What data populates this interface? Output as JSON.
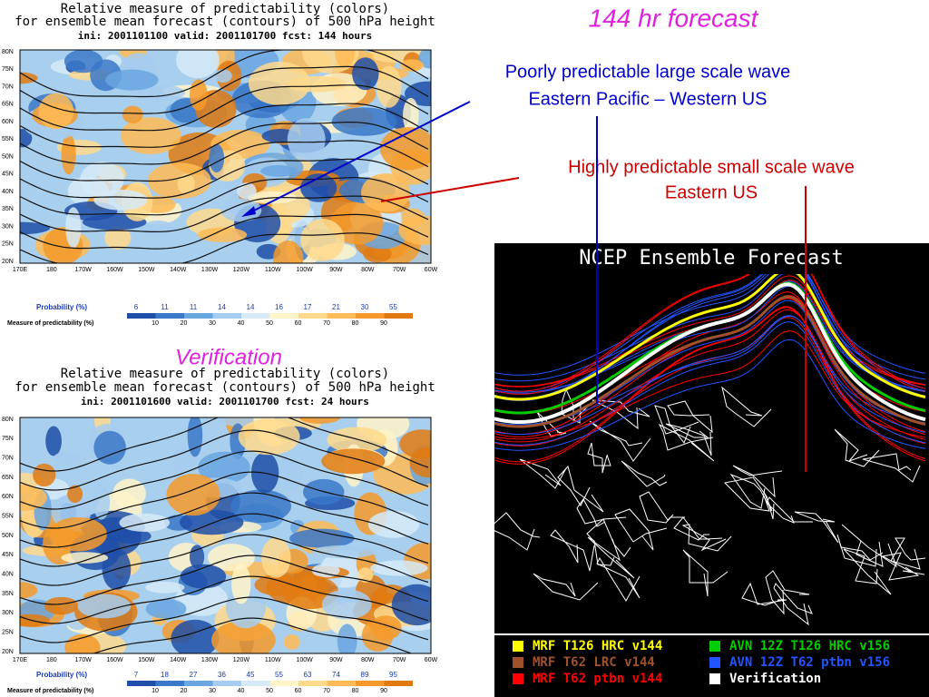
{
  "slide": {
    "title": "144 hr forecast",
    "verification_label": "Verification",
    "annotations": [
      {
        "lines": [
          "Poorly predictable large scale wave",
          "Eastern Pacific – Western US"
        ],
        "color": "#0000cc"
      },
      {
        "lines": [
          "Highly predictable small scale wave",
          "Eastern US"
        ],
        "color": "#cc0000"
      }
    ]
  },
  "panels": [
    {
      "title_lines": [
        "Relative measure of predictability (colors)",
        "for ensemble mean forecast (contours) of 500 hPa height",
        "ini: 2001101100 valid: 2001101700 fcst: 144 hours"
      ],
      "lat_labels": [
        "80N",
        "75N",
        "70N",
        "65N",
        "60N",
        "55N",
        "50N",
        "45N",
        "40N",
        "35N",
        "30N",
        "25N",
        "20N"
      ],
      "lon_labels": [
        "170E",
        "180",
        "170W",
        "160W",
        "150W",
        "140W",
        "130W",
        "120W",
        "110W",
        "100W",
        "90W",
        "80W",
        "70W",
        "60W"
      ],
      "probability_label": "Probability (%)",
      "probability_values": [
        "6",
        "11",
        "11",
        "14",
        "14",
        "16",
        "17",
        "21",
        "30",
        "55"
      ],
      "measure_label": "Measure of predictability (%)",
      "measure_values": [
        "10",
        "20",
        "30",
        "40",
        "50",
        "60",
        "70",
        "80",
        "90"
      ]
    },
    {
      "title_lines": [
        "Relative measure of predictability (colors)",
        "for ensemble mean forecast (contours) of 500 hPa height",
        "ini: 2001101600 valid: 2001101700 fcst: 24 hours"
      ],
      "lat_labels": [
        "80N",
        "75N",
        "70N",
        "65N",
        "60N",
        "55N",
        "50N",
        "45N",
        "40N",
        "35N",
        "30N",
        "25N",
        "20N"
      ],
      "lon_labels": [
        "170E",
        "180",
        "170W",
        "160W",
        "150W",
        "140W",
        "130W",
        "120W",
        "110W",
        "100W",
        "90W",
        "80W",
        "70W",
        "60W"
      ],
      "probability_label": "Probability (%)",
      "probability_values": [
        "7",
        "18",
        "27",
        "36",
        "45",
        "55",
        "63",
        "74",
        "89",
        "95"
      ],
      "measure_label": "Measure of predictability (%)",
      "measure_values": [
        "10",
        "20",
        "30",
        "40",
        "50",
        "60",
        "70",
        "80",
        "90"
      ]
    }
  ],
  "ensemble": {
    "title": "NCEP Ensemble Forecast",
    "legend": [
      {
        "label": "MRF T126 HRC v144",
        "color": "#ffff00"
      },
      {
        "label": "AVN 12Z T126 HRC v156",
        "color": "#00cc00"
      },
      {
        "label": "MRF T62 LRC v144",
        "color": "#a0522d"
      },
      {
        "label": "AVN 12Z T62 ptbn v156",
        "color": "#2255ff"
      },
      {
        "label": "MRF T62 ptbn v144",
        "color": "#ff0000"
      },
      {
        "label": "Verification",
        "color": "#ffffff"
      }
    ]
  }
}
